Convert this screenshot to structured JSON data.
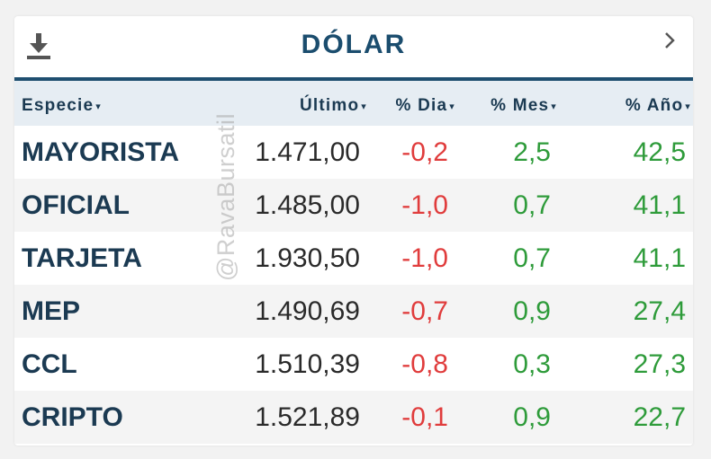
{
  "widget": {
    "title": "DÓLAR",
    "download_icon": "download-icon",
    "next_icon": "chevron-right-icon"
  },
  "columns": {
    "especie": "Especie",
    "ultimo": "Último",
    "dia": "% Dia",
    "mes": "% Mes",
    "ano": "% Año",
    "sort_arrow": "▾"
  },
  "rows": [
    {
      "especie": "MAYORISTA",
      "ultimo": "1.471,00",
      "dia": "-0,2",
      "mes": "2,5",
      "ano": "42,5"
    },
    {
      "especie": "OFICIAL",
      "ultimo": "1.485,00",
      "dia": "-1,0",
      "mes": "0,7",
      "ano": "41,1"
    },
    {
      "especie": "TARJETA",
      "ultimo": "1.930,50",
      "dia": "-1,0",
      "mes": "0,7",
      "ano": "41,1"
    },
    {
      "especie": "MEP",
      "ultimo": "1.490,69",
      "dia": "-0,7",
      "mes": "0,9",
      "ano": "27,4"
    },
    {
      "especie": "CCL",
      "ultimo": "1.510,39",
      "dia": "-0,8",
      "mes": "0,3",
      "ano": "27,3"
    },
    {
      "especie": "CRIPTO",
      "ultimo": "1.521,89",
      "dia": "-0,1",
      "mes": "0,9",
      "ano": "22,7"
    }
  ],
  "watermark": "@RavaBursatil",
  "colors": {
    "title": "#1b4d6e",
    "header_bg": "#e6edf3",
    "negative": "#e03c3c",
    "positive": "#2e9b3a"
  }
}
